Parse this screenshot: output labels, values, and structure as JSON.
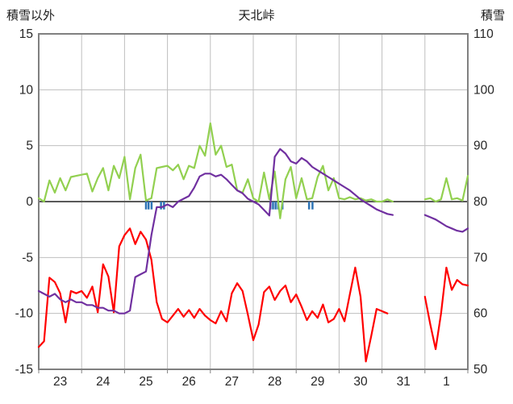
{
  "header": {
    "left_label": "積雪以外",
    "title": "天北峠",
    "right_label": "積雪"
  },
  "chart_data": {
    "type": "line",
    "title": "天北峠",
    "left_axis": {
      "label": "積雪以外",
      "min": -15,
      "max": 15,
      "ticks": [
        15,
        10,
        5,
        0,
        -5,
        -10,
        -15
      ]
    },
    "right_axis": {
      "label": "積雪",
      "min": 50,
      "max": 110,
      "ticks": [
        110,
        100,
        90,
        80,
        70,
        60,
        50
      ]
    },
    "x_axis": {
      "labels": [
        "23",
        "24",
        "25",
        "26",
        "27",
        "28",
        "29",
        "30",
        "31",
        "1"
      ],
      "days": 10
    },
    "x_step_days": 0.125,
    "grid": "on",
    "legend": "none",
    "series": [
      {
        "name": "green-series",
        "axis": "left",
        "color": "#92D050",
        "values": [
          0.3,
          0,
          1.9,
          0.8,
          2.1,
          1.0,
          2.2,
          2.3,
          2.4,
          2.5,
          0.9,
          2.1,
          3.0,
          1.0,
          3.2,
          2.1,
          4.0,
          0.2,
          3.0,
          4.2,
          0.1,
          0.3,
          3.0,
          3.1,
          3.2,
          2.8,
          3.3,
          2.0,
          3.2,
          3.0,
          5.0,
          4.1,
          7.0,
          4.2,
          5.0,
          3.1,
          3.3,
          1.0,
          0.8,
          2.0,
          0.3,
          0,
          2.6,
          0.2,
          2.7,
          -1.5,
          2.0,
          3.1,
          0.3,
          2.1,
          0.2,
          0.3,
          2.2,
          3.2,
          1.0,
          2.1,
          0.3,
          0.2,
          0.4,
          0.2,
          0.3,
          0.1,
          0.2,
          0,
          0,
          0.2,
          0,
          null,
          null,
          null,
          null,
          null,
          0.2,
          0.3,
          0,
          0.2,
          2.1,
          0.2,
          0.3,
          0.1,
          2.3
        ]
      },
      {
        "name": "temperature-red-series",
        "axis": "left",
        "color": "#FF0000",
        "values": [
          -13.0,
          -12.5,
          -6.8,
          -7.2,
          -8.2,
          -10.8,
          -8.0,
          -8.2,
          -8.0,
          -8.6,
          -7.6,
          -9.9,
          -5.6,
          -6.7,
          -9.9,
          -4.0,
          -3.0,
          -2.4,
          -3.8,
          -2.7,
          -3.4,
          -5.2,
          -9.0,
          -10.5,
          -10.8,
          -10.2,
          -9.6,
          -10.3,
          -9.7,
          -10.4,
          -9.6,
          -10.2,
          -10.6,
          -10.9,
          -9.8,
          -10.7,
          -8.2,
          -7.3,
          -8.0,
          -10.1,
          -12.4,
          -11.0,
          -8.1,
          -7.6,
          -8.8,
          -8.0,
          -7.5,
          -9.0,
          -8.3,
          -9.4,
          -10.6,
          -9.8,
          -10.4,
          -9.2,
          -10.8,
          -10.5,
          -9.6,
          -10.7,
          -8.3,
          -5.9,
          -8.5,
          -14.3,
          -12.0,
          -9.6,
          -9.8,
          -10.0,
          null,
          null,
          null,
          null,
          null,
          null,
          -8.5,
          -11.0,
          -13.2,
          -10.0,
          -5.9,
          -7.9,
          -7.0,
          -7.4,
          -7.5
        ]
      },
      {
        "name": "snow-depth-purple-series",
        "axis": "right",
        "color": "#7030A0",
        "values": [
          64,
          63.5,
          63,
          63.5,
          62.5,
          62,
          62.5,
          62,
          62,
          61.5,
          61.5,
          61,
          61,
          60.5,
          60.5,
          60,
          60,
          60.5,
          66.5,
          67,
          67.5,
          74,
          79,
          79,
          79.5,
          79,
          80,
          80.5,
          81,
          82.5,
          84.5,
          85,
          85,
          84.5,
          84.8,
          84,
          83,
          82,
          81.5,
          80.5,
          80,
          79.5,
          78.5,
          77.5,
          88,
          89.4,
          88.6,
          87.2,
          86.8,
          87.8,
          87.2,
          86.2,
          85.6,
          85.0,
          84.4,
          83.8,
          83.2,
          82.6,
          82.0,
          81.2,
          80.4,
          79.8,
          79.2,
          78.6,
          78.2,
          77.8,
          77.6,
          null,
          null,
          null,
          null,
          null,
          77.6,
          77.2,
          76.8,
          76.2,
          75.6,
          75.2,
          74.8,
          74.6,
          75.2
        ]
      }
    ],
    "precip_ticks": {
      "name": "precipitation-ticks",
      "color": "#2E74B5",
      "positions_days": [
        2.5,
        2.56,
        2.63,
        2.85,
        2.92,
        5.4,
        5.46,
        5.52,
        5.58,
        5.68,
        6.3,
        6.38
      ],
      "y_from": 0,
      "y_to": -0.7
    },
    "style": {
      "grid_color": "#BFBFBF",
      "border_color": "#808080",
      "zero_line_color": "#595959",
      "tick_mark_color": "#808080",
      "background": "#FFFFFF"
    }
  }
}
